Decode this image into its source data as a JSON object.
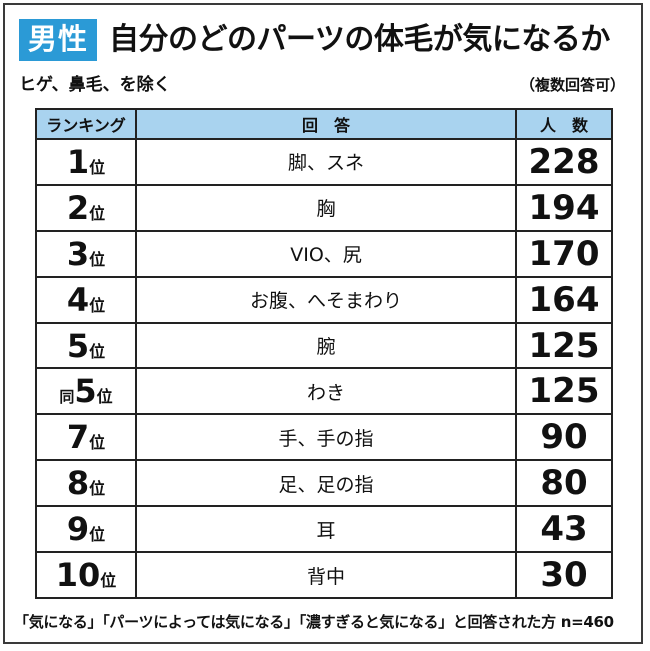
{
  "header": {
    "badge": "男性",
    "title": "自分のどのパーツの体毛が気になるか",
    "subtitle": "ヒゲ、鼻毛、を除く",
    "note": "（複数回答可）"
  },
  "colors": {
    "badge_bg": "#2b9ad6",
    "header_bg": "#a9d3ef"
  },
  "footnote": "「気になる」「パーツによっては気になる」「濃すぎると気になる」と回答された方 n=460",
  "chart_data": {
    "type": "table",
    "columns": [
      "ランキング",
      "回　答",
      "人　数"
    ],
    "rows": [
      {
        "prefix": "",
        "rank": "1",
        "suffix": "位",
        "answer": "脚、スネ",
        "count": 228
      },
      {
        "prefix": "",
        "rank": "2",
        "suffix": "位",
        "answer": "胸",
        "count": 194
      },
      {
        "prefix": "",
        "rank": "3",
        "suffix": "位",
        "answer": "VIO、尻",
        "count": 170
      },
      {
        "prefix": "",
        "rank": "4",
        "suffix": "位",
        "answer": "お腹、へそまわり",
        "count": 164
      },
      {
        "prefix": "",
        "rank": "5",
        "suffix": "位",
        "answer": "腕",
        "count": 125
      },
      {
        "prefix": "同",
        "rank": "5",
        "suffix": "位",
        "answer": "わき",
        "count": 125
      },
      {
        "prefix": "",
        "rank": "7",
        "suffix": "位",
        "answer": "手、手の指",
        "count": 90
      },
      {
        "prefix": "",
        "rank": "8",
        "suffix": "位",
        "answer": "足、足の指",
        "count": 80
      },
      {
        "prefix": "",
        "rank": "9",
        "suffix": "位",
        "answer": "耳",
        "count": 43
      },
      {
        "prefix": "",
        "rank": "10",
        "suffix": "位",
        "answer": "背中",
        "count": 30
      }
    ]
  }
}
